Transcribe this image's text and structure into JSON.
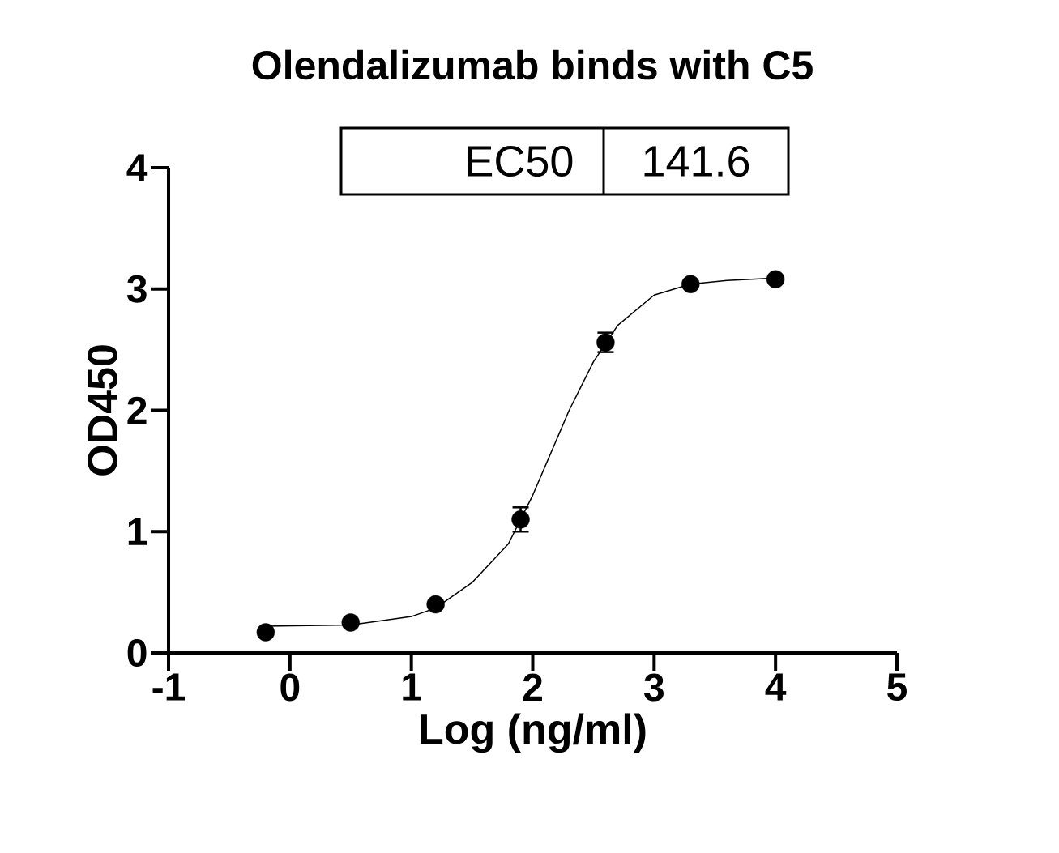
{
  "chart_data": {
    "type": "scatter",
    "title": "Olendalizumab binds with C5",
    "xlabel": "Log (ng/ml)",
    "ylabel": "OD450",
    "annotations": [
      "EC50",
      "141.6"
    ],
    "xlim": [
      -1,
      5
    ],
    "ylim": [
      0,
      4
    ],
    "xticks": [
      -1,
      0,
      1,
      2,
      3,
      4,
      5
    ],
    "yticks": [
      0,
      1,
      2,
      3,
      4
    ],
    "grid": false,
    "marker": "circle",
    "series": [
      {
        "color": "#000000",
        "x": [
          -0.2,
          0.5,
          1.2,
          1.9,
          2.6,
          3.3,
          4.0
        ],
        "values": [
          0.17,
          0.25,
          0.4,
          1.1,
          2.56,
          3.04,
          3.08
        ],
        "errors": [
          null,
          null,
          null,
          0.1,
          0.08,
          null,
          null
        ]
      },
      {
        "type": "line",
        "color": "#000000",
        "marker": "none",
        "x": [
          -0.2,
          0.5,
          1.0,
          1.2,
          1.5,
          1.8,
          2.0,
          2.15,
          2.3,
          2.5,
          2.7,
          3.0,
          3.3,
          3.6,
          4.0
        ],
        "values": [
          0.22,
          0.23,
          0.3,
          0.37,
          0.58,
          0.9,
          1.3,
          1.65,
          2.0,
          2.4,
          2.7,
          2.95,
          3.04,
          3.07,
          3.09
        ]
      }
    ]
  }
}
